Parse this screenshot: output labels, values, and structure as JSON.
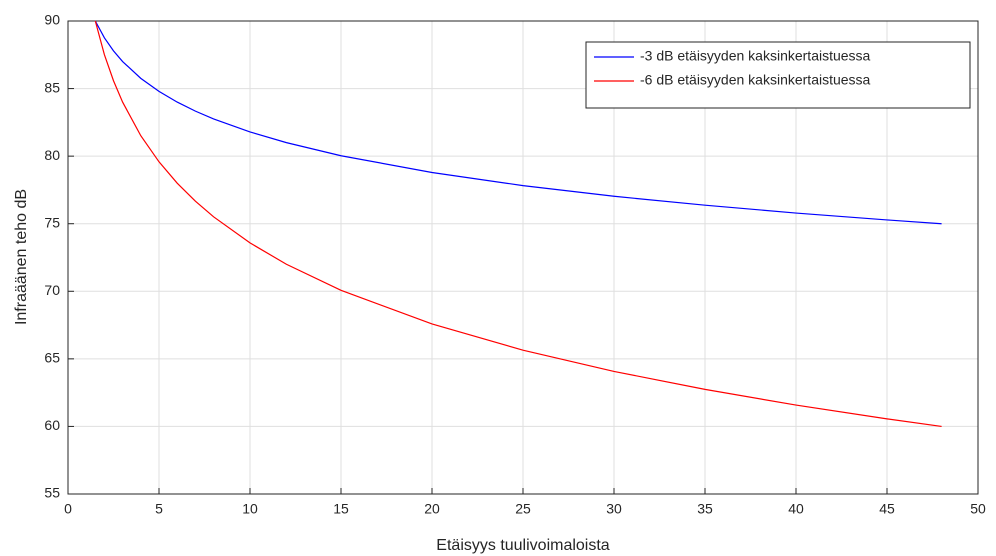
{
  "chart_data": {
    "type": "line",
    "x_label": "Etäisyys tuulivoimaloista",
    "y_label": "Infraäänen teho dB",
    "x": [
      1.5,
      2,
      2.5,
      3,
      4,
      5,
      6,
      7,
      8,
      10,
      12,
      15,
      20,
      25,
      30,
      35,
      40,
      45,
      48
    ],
    "series": [
      {
        "name": "-3 dB etäisyyden kaksinkertaistuessa",
        "color": "#0000ff",
        "values": [
          90,
          88.755,
          87.79,
          87,
          85.755,
          84.79,
          84,
          83.33,
          82.755,
          81.79,
          81,
          80.03,
          78.79,
          77.82,
          77.03,
          76.37,
          75.79,
          75.28,
          75
        ]
      },
      {
        "name": "-6 dB etäisyyden kaksinkertaistuessa",
        "color": "#ff0000",
        "values": [
          90,
          87.51,
          85.58,
          84,
          81.51,
          79.58,
          78,
          76.67,
          75.51,
          73.58,
          72,
          70.07,
          67.58,
          65.64,
          64.07,
          62.74,
          61.58,
          60.56,
          60
        ]
      }
    ],
    "xlim": [
      0,
      50
    ],
    "xticks": [
      0,
      5,
      10,
      15,
      20,
      25,
      30,
      35,
      40,
      45,
      50
    ],
    "ylim": [
      55,
      90
    ],
    "yticks": [
      55,
      60,
      65,
      70,
      75,
      80,
      85,
      90
    ],
    "grid": true,
    "legend": "top-right"
  }
}
